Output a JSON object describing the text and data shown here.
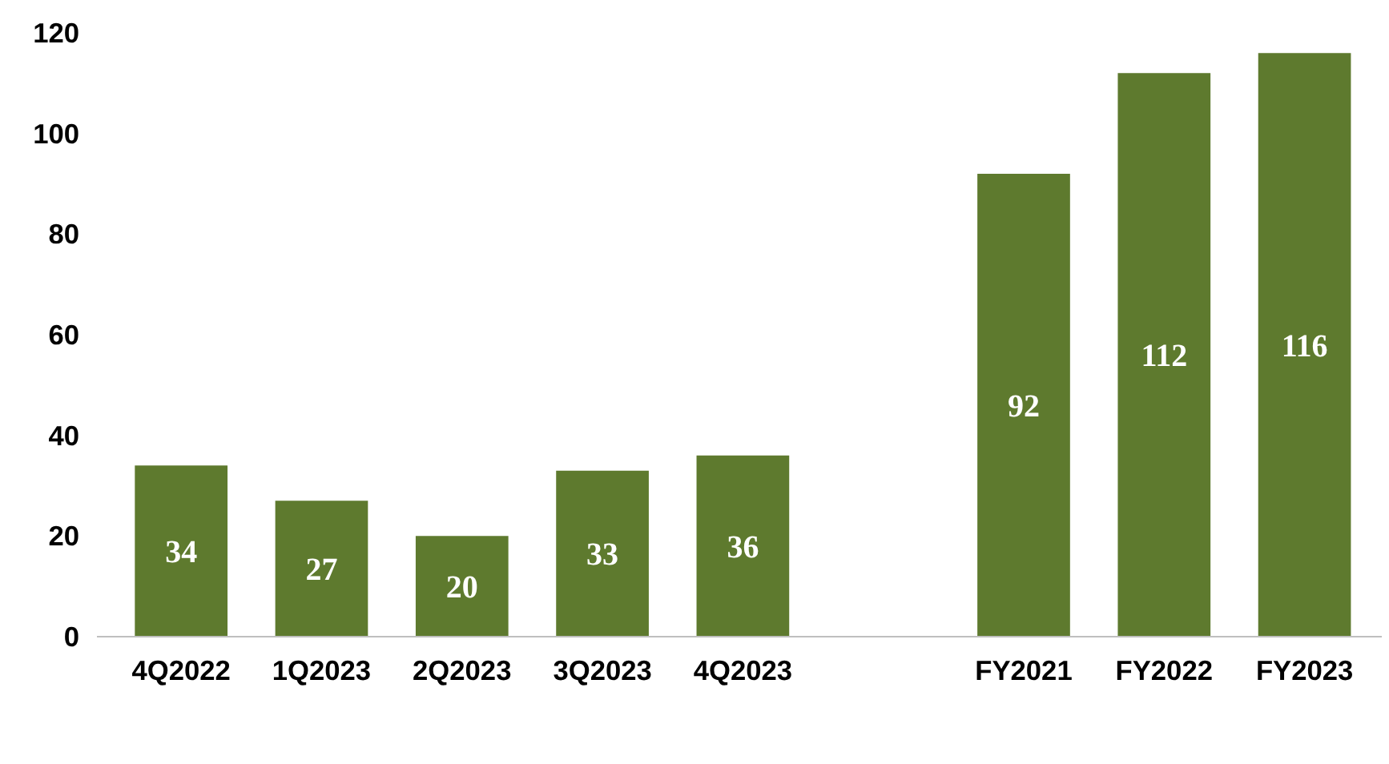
{
  "chart_data": {
    "type": "bar",
    "categories": [
      "4Q2022",
      "1Q2023",
      "2Q2023",
      "3Q2023",
      "4Q2023",
      null,
      "FY2021",
      "FY2022",
      "FY2023"
    ],
    "series": [
      {
        "color": "#5e7a2e",
        "values": [
          34,
          27,
          20,
          33,
          36,
          null,
          92,
          112,
          116
        ]
      }
    ],
    "ylim": [
      0,
      120
    ],
    "yticks": [
      0,
      20,
      40,
      60,
      80,
      100,
      120
    ],
    "grid": false,
    "data_labels": true
  }
}
